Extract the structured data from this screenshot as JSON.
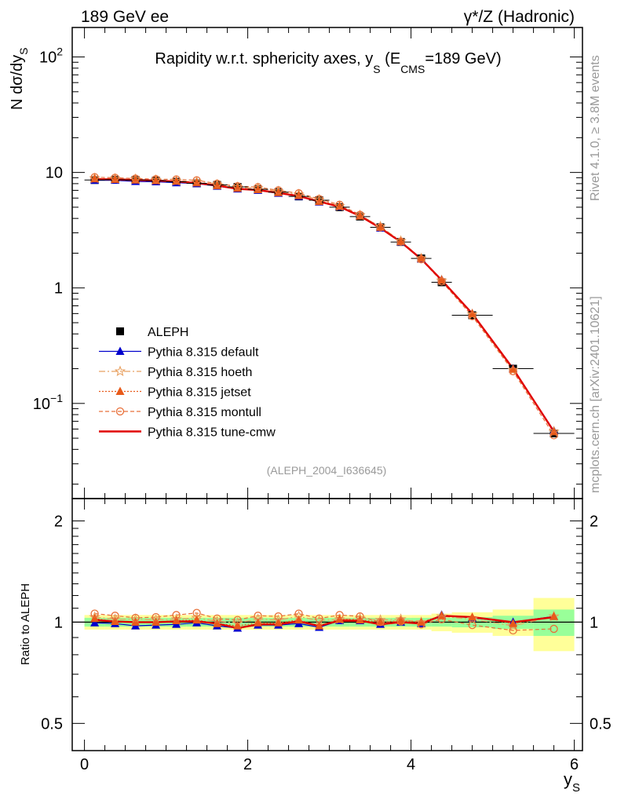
{
  "header": {
    "left": "189 GeV ee",
    "right": "γ*/Z (Hadronic)"
  },
  "side": {
    "rivet": "Rivet 4.1.0, ≥ 3.8M events",
    "mcplots": "mcplots.cern.ch [arXiv:2401.10621]"
  },
  "colors": {
    "data": "#000000",
    "default": "#0000cc",
    "hoeth": "#e8a060",
    "jetset": "#e85a1a",
    "montull": "#e8703a",
    "cmw": "#e00000",
    "band_inner": "#99ff99",
    "band_outer": "#ffff99"
  },
  "chart_data": [
    {
      "id": "main",
      "type": "line",
      "title": "Rapidity w.r.t. sphericity axes, y",
      "title_sub": "S",
      "title_mid": " (E",
      "title_sub2": "CMS",
      "title_end": "=189 GeV)",
      "ylabel": "N  dσ/dy",
      "ylabel_sub": "S",
      "yscale": "log",
      "ylim": [
        0.015,
        180
      ],
      "xlim": [
        -0.15,
        6.1
      ],
      "yticks": [
        {
          "v": 100,
          "base": "10",
          "exp": "2"
        },
        {
          "v": 10,
          "base": "10",
          "exp": ""
        },
        {
          "v": 1,
          "base": "1",
          "exp": ""
        },
        {
          "v": 0.1,
          "base": "10",
          "exp": "−1"
        }
      ],
      "watermark": "(ALEPH_2004_I636645)",
      "x": [
        0.125,
        0.375,
        0.625,
        0.875,
        1.125,
        1.375,
        1.625,
        1.875,
        2.125,
        2.375,
        2.625,
        2.875,
        3.125,
        3.375,
        3.625,
        3.875,
        4.125,
        4.375,
        4.75,
        5.25,
        5.75
      ],
      "xerr": [
        0.125,
        0.125,
        0.125,
        0.125,
        0.125,
        0.125,
        0.125,
        0.125,
        0.125,
        0.125,
        0.125,
        0.125,
        0.125,
        0.125,
        0.125,
        0.125,
        0.125,
        0.125,
        0.25,
        0.25,
        0.25
      ],
      "series": [
        {
          "key": "data",
          "name": "ALEPH",
          "values": [
            8.6,
            8.65,
            8.6,
            8.5,
            8.3,
            8.05,
            7.8,
            7.5,
            7.15,
            6.75,
            6.2,
            5.75,
            5.0,
            4.15,
            3.35,
            2.5,
            1.8,
            1.12,
            0.58,
            0.2,
            0.055
          ]
        },
        {
          "key": "default",
          "name": "Pythia 8.315 default",
          "values": [
            8.55,
            8.55,
            8.35,
            8.3,
            8.15,
            8.0,
            7.6,
            7.2,
            7.0,
            6.6,
            6.2,
            5.55,
            5.05,
            4.2,
            3.3,
            2.5,
            1.78,
            1.18,
            0.6,
            0.2,
            0.058
          ]
        },
        {
          "key": "hoeth",
          "name": "Pythia 8.315 hoeth",
          "values": [
            8.9,
            8.8,
            8.75,
            8.6,
            8.45,
            8.3,
            7.85,
            7.45,
            7.3,
            6.85,
            6.45,
            5.8,
            5.1,
            4.25,
            3.4,
            2.55,
            1.8,
            1.16,
            0.59,
            0.195,
            0.057
          ]
        },
        {
          "key": "jetset",
          "name": "Pythia 8.315 jetset",
          "values": [
            8.8,
            8.7,
            8.6,
            8.5,
            8.4,
            8.15,
            7.7,
            7.3,
            7.1,
            6.7,
            6.3,
            5.6,
            5.1,
            4.2,
            3.35,
            2.52,
            1.8,
            1.17,
            0.6,
            0.198,
            0.057
          ]
        },
        {
          "key": "montull",
          "name": "Pythia 8.315 montull",
          "values": [
            9.1,
            9.0,
            8.85,
            8.75,
            8.7,
            8.55,
            8.0,
            7.6,
            7.45,
            7.0,
            6.6,
            5.9,
            5.25,
            4.3,
            3.35,
            2.52,
            1.77,
            1.14,
            0.57,
            0.19,
            0.053
          ]
        },
        {
          "key": "cmw",
          "name": "Pythia 8.315 tune-cmw",
          "values": [
            8.75,
            8.7,
            8.6,
            8.5,
            8.35,
            8.1,
            7.7,
            7.2,
            7.05,
            6.65,
            6.25,
            5.6,
            5.05,
            4.2,
            3.3,
            2.5,
            1.78,
            1.17,
            0.6,
            0.2,
            0.057
          ]
        }
      ]
    },
    {
      "id": "ratio",
      "type": "line",
      "ylabel": "Ratio to ALEPH",
      "xlabel": "y",
      "xlabel_sub": "S",
      "yscale": "log",
      "ylim": [
        0.415,
        2.33
      ],
      "xlim": [
        -0.15,
        6.1
      ],
      "yticks": [
        {
          "v": 2,
          "label": "2"
        },
        {
          "v": 1,
          "label": "1"
        },
        {
          "v": 0.5,
          "label": "0.5"
        }
      ],
      "xticks": [
        {
          "v": 0,
          "label": "0"
        },
        {
          "v": 2,
          "label": "2"
        },
        {
          "v": 4,
          "label": "4"
        },
        {
          "v": 6,
          "label": "6"
        }
      ],
      "band_inner": [
        0.03,
        0.03,
        0.03,
        0.03,
        0.03,
        0.03,
        0.03,
        0.03,
        0.03,
        0.03,
        0.03,
        0.03,
        0.03,
        0.03,
        0.03,
        0.03,
        0.03,
        0.03,
        0.035,
        0.045,
        0.09
      ],
      "band_outer": [
        0.05,
        0.05,
        0.05,
        0.05,
        0.05,
        0.05,
        0.05,
        0.05,
        0.05,
        0.05,
        0.05,
        0.05,
        0.05,
        0.05,
        0.05,
        0.05,
        0.05,
        0.06,
        0.07,
        0.09,
        0.18
      ],
      "series": [
        {
          "key": "default",
          "values": [
            0.995,
            0.99,
            0.975,
            0.98,
            0.985,
            0.995,
            0.975,
            0.96,
            0.98,
            0.98,
            0.99,
            0.965,
            1.01,
            1.01,
            0.985,
            1.0,
            0.99,
            1.05,
            1.03,
            1.0,
            1.04
          ]
        },
        {
          "key": "hoeth",
          "values": [
            1.035,
            1.02,
            1.02,
            1.015,
            1.02,
            1.03,
            1.005,
            0.995,
            1.02,
            1.015,
            1.04,
            1.01,
            1.02,
            1.025,
            1.015,
            1.02,
            1.0,
            1.04,
            1.02,
            0.975,
            1.04
          ]
        },
        {
          "key": "jetset",
          "values": [
            1.025,
            1.005,
            1.0,
            1.0,
            1.01,
            1.015,
            0.99,
            0.975,
            0.995,
            0.995,
            1.015,
            0.975,
            1.02,
            1.015,
            1.0,
            1.01,
            1.0,
            1.045,
            1.035,
            0.99,
            1.04
          ]
        },
        {
          "key": "montull",
          "values": [
            1.06,
            1.045,
            1.03,
            1.035,
            1.05,
            1.065,
            1.025,
            1.015,
            1.045,
            1.04,
            1.06,
            1.025,
            1.05,
            1.04,
            1.0,
            1.005,
            0.985,
            1.02,
            0.98,
            0.945,
            0.955
          ]
        },
        {
          "key": "cmw",
          "values": [
            1.015,
            1.005,
            1.0,
            1.0,
            1.005,
            1.005,
            0.99,
            0.96,
            0.985,
            0.985,
            1.005,
            0.975,
            1.01,
            1.01,
            0.985,
            1.0,
            0.99,
            1.045,
            1.035,
            1.0,
            1.035
          ]
        }
      ]
    }
  ]
}
